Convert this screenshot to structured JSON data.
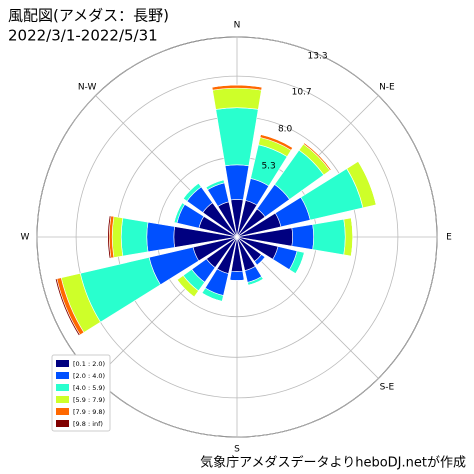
{
  "chart_data": {
    "type": "windrose",
    "title": "風配図(アメダス：長野)",
    "subtitle": "2022/3/1-2022/5/31",
    "credit": "気象庁アメダスデータよりheboDJ.netが作成",
    "categories": [
      "N",
      null,
      "N-E",
      null,
      "E",
      null,
      "S-E",
      null,
      "S",
      null,
      null,
      null,
      "W",
      null,
      "N-W",
      null
    ],
    "rlim": [
      0,
      13.3
    ],
    "rticks": [
      5.3,
      {
        "value": 8,
        "label": "8.0"
      },
      10.7,
      13.3
    ],
    "grid": true,
    "legend": "lower left",
    "series": [
      {
        "name": "[0.1 : 2.0)",
        "color": "#000080",
        "values": [
          2.5,
          2.5,
          2.3,
          3.0,
          3.7,
          2.8,
          2.0,
          2.3,
          2.3,
          2.5,
          2.5,
          3.0,
          4.2,
          2.6,
          2.8,
          2.4
        ]
      },
      {
        "name": "[2.0 : 4.0)",
        "color": "#0050ff",
        "values": [
          2.3,
          1.5,
          2.0,
          2.0,
          1.4,
          1.3,
          0.3,
          0.8,
          0.6,
          1.5,
          1.2,
          3.0,
          1.8,
          1.5,
          1.3,
          1.3
        ]
      },
      {
        "name": "[4.0 : 5.9)",
        "color": "#29ffce",
        "values": [
          3.8,
          2.3,
          2.8,
          3.6,
          2.1,
          0.5,
          0,
          0.2,
          0,
          0.4,
          0.7,
          4.7,
          1.7,
          0.2,
          0.3,
          0.2
        ]
      },
      {
        "name": "[5.9 : 7.9)",
        "color": "#ceff29",
        "values": [
          1.3,
          0.5,
          0.5,
          0.9,
          0.5,
          0,
          0,
          0,
          0,
          0,
          0.5,
          1.3,
          0.6,
          0,
          0,
          0
        ]
      },
      {
        "name": "[7.9 : 9.8)",
        "color": "#ff6800",
        "values": [
          0.2,
          0.2,
          0.1,
          0,
          0,
          0,
          0,
          0,
          0,
          0,
          0,
          0.3,
          0.2,
          0,
          0,
          0
        ]
      },
      {
        "name": "[9.8 : inf)",
        "color": "#800000",
        "values": [
          0,
          0,
          0,
          0,
          0,
          0,
          0,
          0,
          0,
          0,
          0,
          0.1,
          0.1,
          0,
          0,
          0
        ]
      }
    ]
  }
}
